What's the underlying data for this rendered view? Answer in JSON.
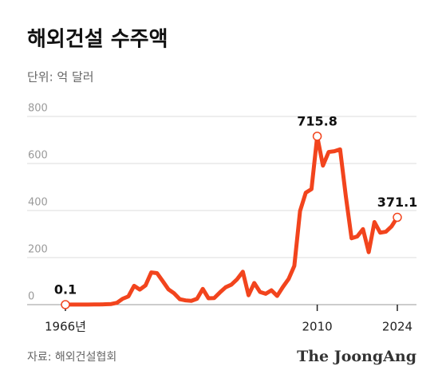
{
  "chart_data": {
    "type": "line",
    "title": "해외건설 수주액",
    "subtitle": "단위: 억 달러",
    "source": "자료: 해외건설협회",
    "brand": "The JoongAng",
    "x": [
      1966,
      1967,
      1968,
      1969,
      1970,
      1971,
      1972,
      1973,
      1974,
      1975,
      1976,
      1977,
      1978,
      1979,
      1980,
      1981,
      1982,
      1983,
      1984,
      1985,
      1986,
      1987,
      1988,
      1989,
      1990,
      1991,
      1992,
      1993,
      1994,
      1995,
      1996,
      1997,
      1998,
      1999,
      2000,
      2001,
      2002,
      2003,
      2004,
      2005,
      2006,
      2007,
      2008,
      2009,
      2010,
      2011,
      2012,
      2013,
      2014,
      2015,
      2016,
      2017,
      2018,
      2019,
      2020,
      2021,
      2022,
      2023,
      2024
    ],
    "series": [
      {
        "name": "해외건설 수주액",
        "color": "#f2441d",
        "values": [
          0.1,
          0.6,
          0.5,
          0.3,
          0.5,
          0.8,
          0.8,
          1.7,
          2.6,
          8,
          25,
          35,
          80,
          64,
          82,
          137,
          134,
          100,
          65,
          48,
          23,
          18,
          16,
          25,
          67,
          27,
          28,
          52,
          74,
          85,
          108,
          140,
          40,
          92,
          54,
          46,
          61,
          37,
          75,
          109,
          165,
          398,
          476,
          491,
          715.8,
          591,
          649,
          652,
          660,
          461,
          282,
          290,
          321,
          223,
          351,
          306,
          310,
          333,
          371.1
        ],
        "value_labels": [
          "0.1",
          null,
          null,
          null,
          null,
          null,
          null,
          null,
          null,
          null,
          null,
          null,
          null,
          null,
          null,
          null,
          null,
          null,
          null,
          null,
          null,
          null,
          null,
          null,
          null,
          null,
          null,
          null,
          null,
          null,
          null,
          null,
          null,
          null,
          null,
          null,
          null,
          null,
          null,
          null,
          null,
          null,
          null,
          null,
          "715.8",
          null,
          null,
          null,
          null,
          null,
          null,
          null,
          null,
          null,
          null,
          null,
          null,
          null,
          "371.1"
        ]
      }
    ],
    "xlim": [
      1966,
      2024
    ],
    "xticks": [
      {
        "value": 1966,
        "label": "1966년"
      },
      2010,
      2024
    ],
    "ylim": [
      0,
      800
    ],
    "yticks": [
      0,
      200,
      400,
      600,
      800
    ],
    "grid": true
  }
}
